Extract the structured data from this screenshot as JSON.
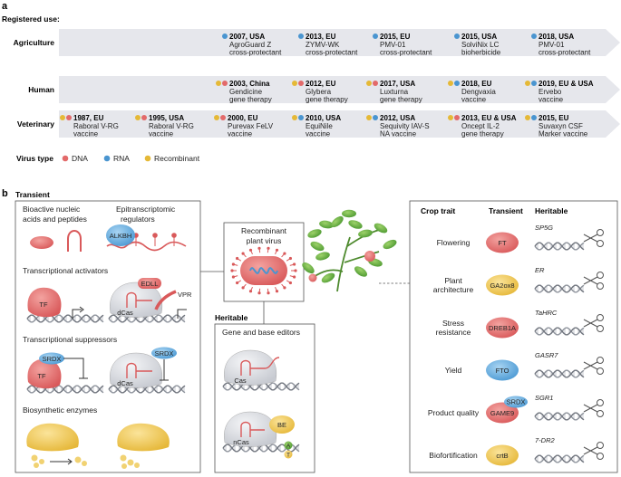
{
  "panel_a": {
    "label": "a",
    "registered_use": "Registered use:",
    "rows": [
      {
        "name": "Agriculture",
        "entries": [
          {
            "dots": [
              "rna"
            ],
            "head": "2007, USA",
            "lines": [
              "AgroGuard Z",
              "cross-protectant"
            ]
          },
          {
            "dots": [
              "rna"
            ],
            "head": "2013, EU",
            "lines": [
              "ZYMV-WK",
              "cross-protectant"
            ]
          },
          {
            "dots": [
              "rna"
            ],
            "head": "2015, EU",
            "lines": [
              "PMV-01",
              "cross-protectant"
            ]
          },
          {
            "dots": [
              "rna"
            ],
            "head": "2015, USA",
            "lines": [
              "SolviNix LC",
              "bioherbicide"
            ]
          },
          {
            "dots": [
              "rna"
            ],
            "head": "2018, USA",
            "lines": [
              "PMV-01",
              "cross-protectant"
            ]
          }
        ]
      },
      {
        "name": "Human",
        "entries": [
          {
            "dots": [
              "rec",
              "dna"
            ],
            "head": "2003, China",
            "lines": [
              "Gendicine",
              "gene therapy"
            ]
          },
          {
            "dots": [
              "rec",
              "dna"
            ],
            "head": "2012, EU",
            "lines": [
              "Glybera",
              "gene therapy"
            ]
          },
          {
            "dots": [
              "rec",
              "dna"
            ],
            "head": "2017, USA",
            "lines": [
              "Luxturna",
              "gene therapy"
            ]
          },
          {
            "dots": [
              "rec",
              "rna"
            ],
            "head": "2018, EU",
            "lines": [
              "Dengvaxia",
              "vaccine"
            ]
          },
          {
            "dots": [
              "rec",
              "rna"
            ],
            "head": "2019, EU & USA",
            "lines": [
              "Ervebo",
              "vaccine"
            ]
          }
        ]
      },
      {
        "name": "Veterinary",
        "entries": [
          {
            "dots": [
              "rec",
              "dna"
            ],
            "head": "1987, EU",
            "lines": [
              "Raboral V-RG",
              "vaccine"
            ]
          },
          {
            "dots": [
              "rec",
              "dna"
            ],
            "head": "1995, USA",
            "lines": [
              "Raboral V-RG",
              "vaccine"
            ]
          },
          {
            "dots": [
              "rec",
              "dna"
            ],
            "head": "2000, EU",
            "lines": [
              "Purevax FeLV",
              "vaccine"
            ]
          },
          {
            "dots": [
              "rec",
              "rna"
            ],
            "head": "2010, USA",
            "lines": [
              "EquiNile",
              "vaccine"
            ]
          },
          {
            "dots": [
              "rec",
              "rna"
            ],
            "head": "2012, USA",
            "lines": [
              "Sequivity IAV-S",
              "NA vaccine"
            ]
          },
          {
            "dots": [
              "rec",
              "dna"
            ],
            "head": "2013, EU & USA",
            "lines": [
              "Oncept IL-2",
              "gene therapy"
            ]
          },
          {
            "dots": [
              "rec",
              "rna"
            ],
            "head": "2015, EU",
            "lines": [
              "Suvaxyn CSF",
              "Marker vaccine"
            ]
          }
        ]
      }
    ],
    "legend": {
      "title": "Virus type",
      "dna": "DNA",
      "rna": "RNA",
      "rec": "Recombinant"
    },
    "colors": {
      "dna": "#e36a6a",
      "rna": "#4a95d0",
      "rec": "#e5b937",
      "arrow": "#e6e7ec"
    }
  },
  "panel_b": {
    "label": "b",
    "transient_title": "Transient",
    "heritable_title": "Heritable",
    "bioactive": [
      "Bioactive nucleic",
      "acids and peptides"
    ],
    "epitranscriptomic": [
      "Epitranscriptomic",
      "regulators"
    ],
    "alkbh": "ALKBH",
    "activators": "Transcriptional activators",
    "edll": "EDLL",
    "vpr": "VPR",
    "tf": "TF",
    "dcas": "dCas",
    "suppressors": "Transcriptional suppressors",
    "srdx": "SRDX",
    "biosynthetic": "Biosynthetic enzymes",
    "recombinant_virus": [
      "Recombinant",
      "plant virus"
    ],
    "editors": "Gene and base editors",
    "cas": "Cas",
    "ncas": "nCas",
    "be": "BE",
    "a": "A",
    "t": "T",
    "table_headers": {
      "trait": "Crop trait",
      "transient": "Transient",
      "heritable": "Heritable"
    },
    "traits": [
      {
        "trait": [
          "Flowering"
        ],
        "transient": "FT",
        "heritable": "SP5G"
      },
      {
        "trait": [
          "Plant",
          "architecture"
        ],
        "transient": "GA2ox8",
        "heritable": "ER"
      },
      {
        "trait": [
          "Stress",
          "resistance"
        ],
        "transient": "DREB1A",
        "heritable": "TaHRC"
      },
      {
        "trait": [
          "Yield"
        ],
        "transient": "FTO",
        "heritable": "GASR7"
      },
      {
        "trait": [
          "Product quality"
        ],
        "transient": "GAME9",
        "heritable": "SGR1",
        "extra": "SRDX"
      },
      {
        "trait": [
          "Biofortification"
        ],
        "transient": "crtB",
        "heritable": "7-DR2"
      }
    ]
  }
}
